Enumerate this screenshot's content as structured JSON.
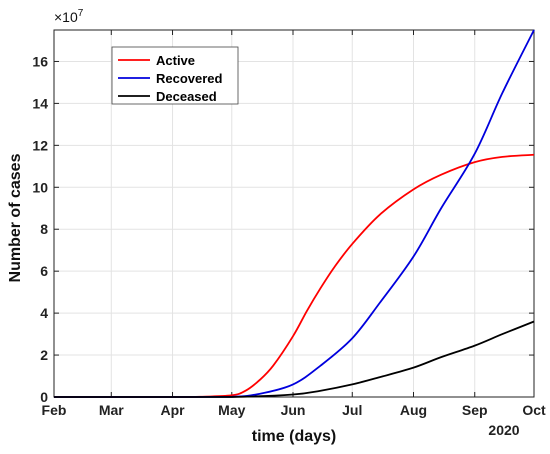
{
  "chart_data": {
    "type": "line",
    "xlabel": "time (days)",
    "ylabel": "Number of cases",
    "y_multiplier_label": "×10",
    "y_multiplier_exponent": "7",
    "year_label": "2020",
    "x_ticks": [
      "Feb",
      "Mar",
      "Apr",
      "May",
      "Jun",
      "Jul",
      "Aug",
      "Sep",
      "Oct"
    ],
    "y_ticks": [
      "0",
      "2",
      "4",
      "6",
      "8",
      "10",
      "12",
      "14",
      "16"
    ],
    "xlim": [
      "Feb 1",
      "Oct 1"
    ],
    "ylim": [
      0,
      17.5
    ],
    "grid": true,
    "legend_position": "top-left",
    "series": [
      {
        "name": "Active",
        "color": "#ff0000",
        "x": [
          "Feb",
          "Mar",
          "Apr",
          "Apr 15",
          "May",
          "May 8",
          "May 15",
          "May 22",
          "Jun",
          "Jun 8",
          "Jun 15",
          "Jun 22",
          "Jul",
          "Jul 15",
          "Aug",
          "Aug 15",
          "Sep",
          "Sep 15",
          "Oct"
        ],
        "values": [
          0,
          0,
          0,
          0.01,
          0.08,
          0.3,
          0.8,
          1.5,
          2.9,
          4.1,
          5.2,
          6.2,
          7.3,
          8.7,
          9.9,
          10.6,
          11.2,
          11.45,
          11.55
        ]
      },
      {
        "name": "Recovered",
        "color": "#0000dd",
        "x": [
          "Feb",
          "Mar",
          "Apr",
          "May",
          "May 15",
          "Jun",
          "Jun 15",
          "Jul",
          "Jul 15",
          "Aug",
          "Aug 15",
          "Sep",
          "Sep 15",
          "Oct"
        ],
        "values": [
          0,
          0,
          0,
          0.01,
          0.15,
          0.6,
          1.5,
          2.8,
          4.5,
          6.7,
          9.0,
          11.6,
          14.5,
          17.5
        ]
      },
      {
        "name": "Deceased",
        "color": "#000000",
        "x": [
          "Feb",
          "Mar",
          "Apr",
          "May",
          "Jun",
          "Jun 15",
          "Jul",
          "Jul 15",
          "Aug",
          "Aug 15",
          "Sep",
          "Sep 15",
          "Oct"
        ],
        "values": [
          0,
          0,
          0,
          0,
          0.12,
          0.3,
          0.6,
          0.95,
          1.4,
          1.9,
          2.45,
          3.0,
          3.6
        ]
      }
    ]
  }
}
